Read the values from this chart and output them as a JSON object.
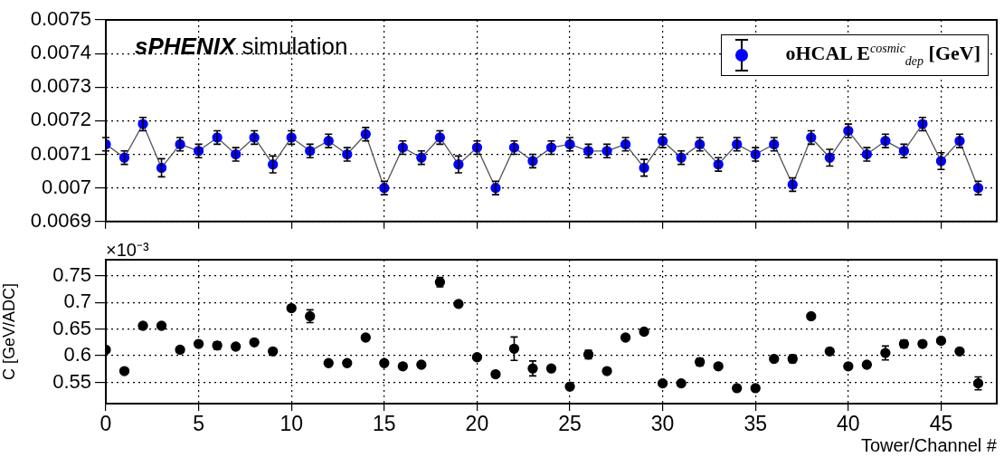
{
  "chart_data": [
    {
      "type": "line",
      "annotations": [
        "sPHENIX simulation"
      ],
      "x": [
        0,
        1,
        2,
        3,
        4,
        5,
        6,
        7,
        8,
        9,
        10,
        11,
        12,
        13,
        14,
        15,
        16,
        17,
        18,
        19,
        20,
        21,
        22,
        23,
        24,
        25,
        26,
        27,
        28,
        29,
        30,
        31,
        32,
        33,
        34,
        35,
        36,
        37,
        38,
        39,
        40,
        41,
        42,
        43,
        44,
        45,
        46,
        47
      ],
      "series": [
        {
          "name": "oHCAL  E$^{cosmic}$$_{dep}$ [GeV]",
          "color": "#0000ff",
          "values": [
            0.00713,
            0.00709,
            0.00719,
            0.00706,
            0.00713,
            0.00711,
            0.00715,
            0.0071,
            0.00715,
            0.00707,
            0.00715,
            0.00711,
            0.00714,
            0.0071,
            0.00716,
            0.007,
            0.00712,
            0.00709,
            0.00715,
            0.00707,
            0.00712,
            0.007,
            0.00712,
            0.00708,
            0.00712,
            0.00713,
            0.00711,
            0.00711,
            0.00713,
            0.00706,
            0.00714,
            0.00709,
            0.00713,
            0.00707,
            0.00713,
            0.0071,
            0.00713,
            0.00701,
            0.00715,
            0.00709,
            0.00717,
            0.0071,
            0.00714,
            0.00711,
            0.00719,
            0.00708,
            0.00714,
            0.007
          ],
          "errors": [
            2e-05,
            2e-05,
            2e-05,
            2.7e-05,
            2e-05,
            2e-05,
            2e-05,
            2e-05,
            2e-05,
            2.5e-05,
            2e-05,
            2e-05,
            2e-05,
            2e-05,
            2e-05,
            2e-05,
            2e-05,
            2e-05,
            2e-05,
            2.5e-05,
            2e-05,
            2e-05,
            2e-05,
            2e-05,
            2e-05,
            2e-05,
            2e-05,
            2e-05,
            2e-05,
            2.5e-05,
            2e-05,
            2e-05,
            2e-05,
            2e-05,
            2e-05,
            2e-05,
            2e-05,
            2e-05,
            2e-05,
            2.5e-05,
            2e-05,
            2e-05,
            2e-05,
            2e-05,
            2e-05,
            2.5e-05,
            2e-05,
            2e-05
          ]
        }
      ],
      "xlim": [
        0,
        48
      ],
      "xticks": [
        0,
        5,
        10,
        15,
        20,
        25,
        30,
        35,
        40,
        45
      ],
      "ylim": [
        0.0069,
        0.0075
      ],
      "yticks": [
        0.0069,
        0.007,
        0.0071,
        0.0072,
        0.0073,
        0.0074,
        0.0075
      ],
      "tick_labels": "y",
      "grid": true,
      "legend": "top right",
      "marker": "circle",
      "line_style": "solid"
    },
    {
      "type": "scatter",
      "annotations": [
        "×10⁻³"
      ],
      "xlabel": "Tower/Channel #",
      "ylabel": "C [GeV/ADC]",
      "x": [
        0,
        1,
        2,
        3,
        4,
        5,
        6,
        7,
        8,
        9,
        10,
        11,
        12,
        13,
        14,
        15,
        16,
        17,
        18,
        19,
        20,
        21,
        22,
        23,
        24,
        25,
        26,
        27,
        28,
        29,
        30,
        31,
        32,
        33,
        34,
        35,
        36,
        37,
        38,
        39,
        40,
        41,
        42,
        43,
        44,
        45,
        46,
        47
      ],
      "series": [
        {
          "color": "#000000",
          "values": [
            0.611,
            0.571,
            0.656,
            0.656,
            0.611,
            0.622,
            0.619,
            0.617,
            0.625,
            0.608,
            0.689,
            0.674,
            0.586,
            0.586,
            0.634,
            0.586,
            0.58,
            0.583,
            0.738,
            0.697,
            0.597,
            0.565,
            0.613,
            0.576,
            0.576,
            0.542,
            0.602,
            0.571,
            0.634,
            0.645,
            0.548,
            0.548,
            0.588,
            0.58,
            0.539,
            0.539,
            0.594,
            0.594,
            0.674,
            0.608,
            0.58,
            0.583,
            0.605,
            0.622,
            0.622,
            0.628,
            0.608,
            0.548
          ],
          "errors": [
            null,
            null,
            null,
            null,
            null,
            null,
            0.007,
            null,
            null,
            null,
            null,
            0.012,
            null,
            null,
            null,
            null,
            null,
            null,
            0.009,
            null,
            null,
            null,
            0.022,
            0.014,
            null,
            null,
            0.008,
            null,
            null,
            null,
            null,
            null,
            0.007,
            null,
            null,
            null,
            null,
            0.007,
            null,
            null,
            null,
            null,
            0.013,
            0.007,
            null,
            null,
            null,
            0.012
          ]
        }
      ],
      "xlim": [
        0,
        48
      ],
      "xticks": [
        0,
        5,
        10,
        15,
        20,
        25,
        30,
        35,
        40,
        45
      ],
      "ylim": [
        0.51,
        0.78
      ],
      "yticks": [
        0.55,
        0.6,
        0.65,
        0.7,
        0.75
      ],
      "grid": true,
      "legend": false,
      "marker": "circle"
    }
  ]
}
